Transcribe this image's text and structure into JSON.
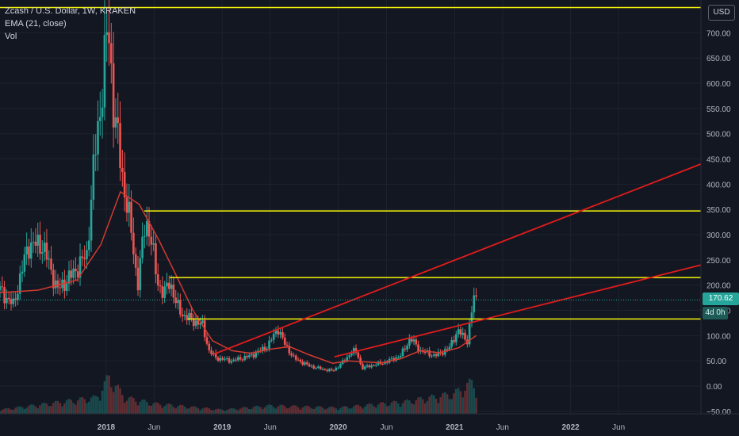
{
  "legend": {
    "symbol": "Zcash / U.S. Dollar, 1W, KRAKEN",
    "ema": "EMA (21, close)",
    "vol": "Vol"
  },
  "currency_button": "USD",
  "last_price": "170.62",
  "time_to_close": "4d 0h",
  "colors": {
    "background": "#131722",
    "up_candle": "#26a69a",
    "down_candle": "#ef5350",
    "ema": "#d23a2f",
    "trend_line": "#e01c1c",
    "horizontal_level": "#f5f50a"
  },
  "chart_data": {
    "type": "candlestick",
    "symbol": "ZEC/USD",
    "interval": "1W",
    "exchange": "KRAKEN",
    "y_axis": {
      "ticks": [
        -50,
        0,
        50,
        100,
        150,
        200,
        250,
        300,
        350,
        400,
        450,
        500,
        550,
        600,
        650,
        700
      ],
      "tick_labels": [
        "−50.00",
        "0.00",
        "50.00",
        "100.00",
        "150.00",
        "200.00",
        "250.00",
        "300.00",
        "350.00",
        "400.00",
        "450.00",
        "500.00",
        "550.00",
        "600.00",
        "650.00",
        "700.00"
      ],
      "top_tick": 750,
      "top_tick_label": "7",
      "range": [
        -55,
        765
      ]
    },
    "x_axis": {
      "range": [
        "2017-02-01",
        "2023-02-15"
      ],
      "ticks": [
        {
          "date": "2018-01-01",
          "label": "2018",
          "bold": true
        },
        {
          "date": "2018-06-01",
          "label": "Jun",
          "bold": false
        },
        {
          "date": "2019-01-01",
          "label": "2019",
          "bold": true
        },
        {
          "date": "2019-06-01",
          "label": "Jun",
          "bold": false
        },
        {
          "date": "2020-01-01",
          "label": "2020",
          "bold": true
        },
        {
          "date": "2020-06-01",
          "label": "Jun",
          "bold": false
        },
        {
          "date": "2021-01-01",
          "label": "2021",
          "bold": true
        },
        {
          "date": "2021-06-01",
          "label": "Jun",
          "bold": false
        },
        {
          "date": "2022-01-01",
          "label": "2022",
          "bold": true
        },
        {
          "date": "2022-06-01",
          "label": "Jun",
          "bold": false
        }
      ]
    },
    "price_path": [
      [
        "2017-02-01",
        190
      ],
      [
        "2017-03-15",
        160
      ],
      [
        "2017-05-01",
        280
      ],
      [
        "2017-06-15",
        280
      ],
      [
        "2017-08-01",
        190
      ],
      [
        "2017-09-15",
        220
      ],
      [
        "2017-11-01",
        260
      ],
      [
        "2017-11-25",
        450
      ],
      [
        "2017-12-15",
        560
      ],
      [
        "2018-01-07",
        720
      ],
      [
        "2018-01-25",
        550
      ],
      [
        "2018-02-20",
        420
      ],
      [
        "2018-03-20",
        310
      ],
      [
        "2018-04-10",
        200
      ],
      [
        "2018-05-05",
        330
      ],
      [
        "2018-05-20",
        300
      ],
      [
        "2018-06-10",
        210
      ],
      [
        "2018-07-01",
        180
      ],
      [
        "2018-07-20",
        210
      ],
      [
        "2018-08-10",
        160
      ],
      [
        "2018-09-01",
        140
      ],
      [
        "2018-10-01",
        130
      ],
      [
        "2018-11-01",
        120
      ],
      [
        "2018-11-20",
        70
      ],
      [
        "2018-12-15",
        55
      ],
      [
        "2019-02-01",
        50
      ],
      [
        "2019-04-01",
        60
      ],
      [
        "2019-05-01",
        70
      ],
      [
        "2019-05-25",
        80
      ],
      [
        "2019-06-25",
        115
      ],
      [
        "2019-07-15",
        85
      ],
      [
        "2019-08-15",
        55
      ],
      [
        "2019-10-01",
        40
      ],
      [
        "2019-11-15",
        33
      ],
      [
        "2019-12-15",
        30
      ],
      [
        "2020-01-20",
        50
      ],
      [
        "2020-02-15",
        70
      ],
      [
        "2020-03-01",
        65
      ],
      [
        "2020-03-15",
        35
      ],
      [
        "2020-04-10",
        40
      ],
      [
        "2020-06-01",
        48
      ],
      [
        "2020-07-15",
        60
      ],
      [
        "2020-08-15",
        95
      ],
      [
        "2020-09-15",
        70
      ],
      [
        "2020-11-01",
        60
      ],
      [
        "2020-12-15",
        75
      ],
      [
        "2021-01-10",
        110
      ],
      [
        "2021-02-10",
        90
      ],
      [
        "2021-02-25",
        150
      ],
      [
        "2021-03-05",
        185
      ],
      [
        "2021-03-10",
        170.62
      ]
    ],
    "series": [
      {
        "name": "EMA (21, close)",
        "type": "line",
        "points": [
          [
            "2017-02-01",
            185
          ],
          [
            "2017-06-01",
            190
          ],
          [
            "2017-10-01",
            210
          ],
          [
            "2017-12-15",
            280
          ],
          [
            "2018-02-15",
            385
          ],
          [
            "2018-04-15",
            360
          ],
          [
            "2018-06-15",
            290
          ],
          [
            "2018-08-01",
            230
          ],
          [
            "2018-10-01",
            150
          ],
          [
            "2018-12-01",
            90
          ],
          [
            "2019-02-01",
            70
          ],
          [
            "2019-04-01",
            65
          ],
          [
            "2019-06-01",
            73
          ],
          [
            "2019-08-01",
            78
          ],
          [
            "2019-10-01",
            62
          ],
          [
            "2019-12-15",
            45
          ],
          [
            "2020-02-01",
            50
          ],
          [
            "2020-03-20",
            48
          ],
          [
            "2020-05-15",
            46
          ],
          [
            "2020-07-15",
            54
          ],
          [
            "2020-09-15",
            70
          ],
          [
            "2020-11-15",
            66
          ],
          [
            "2021-01-15",
            76
          ],
          [
            "2021-03-10",
            100
          ]
        ]
      }
    ],
    "volume_path": [
      [
        "2017-02-01",
        0.1
      ],
      [
        "2017-12-01",
        0.4
      ],
      [
        "2018-01-10",
        0.9
      ],
      [
        "2018-03-01",
        0.4
      ],
      [
        "2018-06-01",
        0.25
      ],
      [
        "2019-01-01",
        0.1
      ],
      [
        "2019-06-01",
        0.2
      ],
      [
        "2020-01-01",
        0.15
      ],
      [
        "2020-08-01",
        0.3
      ],
      [
        "2021-01-01",
        0.5
      ],
      [
        "2021-03-01",
        0.8
      ],
      [
        "2021-03-10",
        0.6
      ]
    ],
    "horizontal_lines": [
      {
        "value": 750,
        "start": "2017-02-01",
        "color": "yellow"
      },
      {
        "value": 347,
        "start": "2018-05-01",
        "color": "yellow"
      },
      {
        "value": 215,
        "start": "2018-07-20",
        "color": "yellow"
      },
      {
        "value": 133,
        "start": "2018-09-15",
        "color": "yellow"
      }
    ],
    "trend_lines": [
      {
        "start": [
          "2018-12-01",
          62
        ],
        "end": [
          "2023-02-15",
          440
        ],
        "color": "red"
      },
      {
        "start": [
          "2019-12-20",
          58
        ],
        "end": [
          "2023-02-15",
          240
        ],
        "color": "red"
      }
    ],
    "last_price": 170.62,
    "grid": true,
    "legend_position": "top-left"
  }
}
